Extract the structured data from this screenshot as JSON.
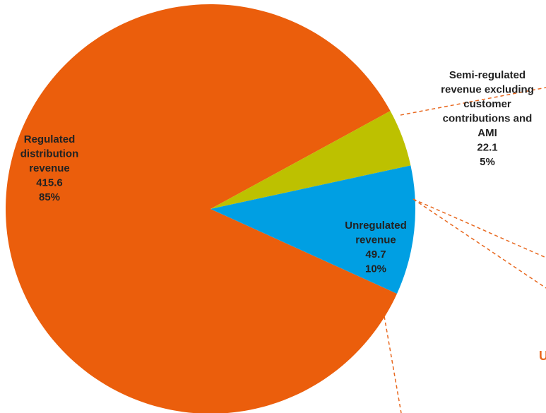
{
  "chart_data": {
    "type": "pie",
    "slices": [
      {
        "label_lines": [
          "Regulated",
          "distribution",
          "revenue"
        ],
        "value": 415.6,
        "value_text": "415.6",
        "percent": 85,
        "percent_text": "85%",
        "color": "#EB5E0C"
      },
      {
        "label_lines": [
          "Semi-regulated",
          "revenue excluding",
          "customer",
          "contributions and",
          "AMI"
        ],
        "value": 22.1,
        "value_text": "22.1",
        "percent": 5,
        "percent_text": "5%",
        "color": "#BDC100"
      },
      {
        "label_lines": [
          "Unregulated",
          "revenue"
        ],
        "value": 49.7,
        "value_text": "49.7",
        "percent": 10,
        "percent_text": "10%",
        "color": "#009FE3"
      }
    ],
    "leader_line_color": "#E8681F",
    "edge_text": "U",
    "edge_text_color": "#E8681F"
  }
}
